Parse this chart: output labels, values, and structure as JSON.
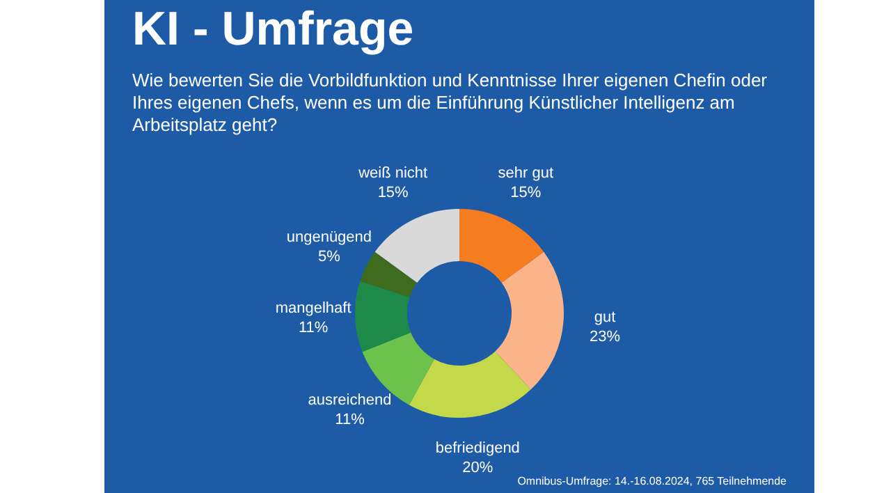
{
  "chart_data": {
    "type": "donut",
    "title": "KI - Umfrage",
    "subtitle": "Wie bewerten Sie die Vorbildfunktion und Kenntnisse Ihrer eigenen Chefin oder Ihres eigenen Chefs, wenn es um die Einführung Künstlicher Intelligenz am Arbeitsplatz geht?",
    "categories": [
      "sehr gut",
      "gut",
      "befriedigend",
      "ausreichend",
      "mangelhaft",
      "ungenügend",
      "weiß nicht"
    ],
    "values": [
      15,
      23,
      20,
      11,
      11,
      5,
      15
    ],
    "value_labels": [
      "15%",
      "23%",
      "20%",
      "11%",
      "11%",
      "5%",
      "15%"
    ],
    "colors": [
      "#f57c1f",
      "#fbb48a",
      "#c3d94a",
      "#6cc24a",
      "#1e8a4a",
      "#3f6b1f",
      "#d9d9d9"
    ],
    "legend": false,
    "annotations": [
      "Omnibus-Umfrage: 14.-16.08.2024, 765 Teilnehmende"
    ]
  }
}
